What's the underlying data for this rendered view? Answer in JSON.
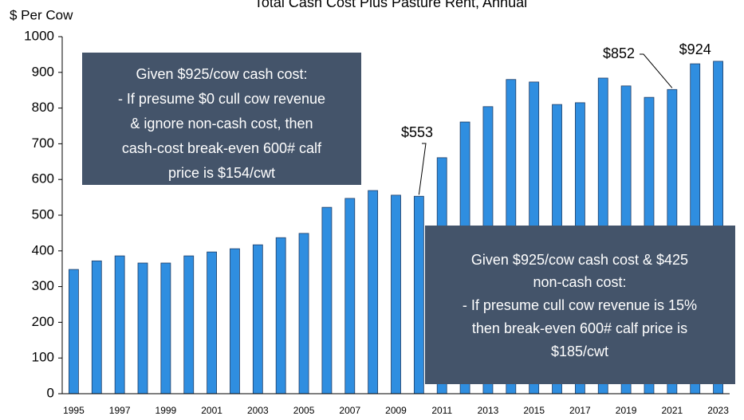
{
  "chart_data": {
    "type": "bar",
    "title": "Total Cash Cost Plus Pasture Rent, Annual",
    "y_label": "$ Per Cow",
    "categories": [
      "1995",
      null,
      "1997",
      null,
      "1999",
      null,
      "2001",
      null,
      "2003",
      null,
      "2005",
      null,
      "2007",
      null,
      "2009",
      null,
      "2011",
      null,
      "2013",
      null,
      "2015",
      null,
      "2017",
      null,
      "2019",
      null,
      "2021",
      null,
      "2023"
    ],
    "values": [
      348,
      372,
      386,
      366,
      366,
      386,
      397,
      406,
      417,
      437,
      449,
      522,
      547,
      569,
      556,
      553,
      661,
      761,
      804,
      880,
      873,
      810,
      815,
      884,
      862,
      830,
      852,
      924,
      931
    ],
    "value_labels": [
      null,
      null,
      null,
      null,
      null,
      null,
      null,
      null,
      null,
      null,
      null,
      null,
      null,
      null,
      null,
      "$553",
      null,
      null,
      null,
      null,
      null,
      null,
      null,
      null,
      null,
      null,
      "$852",
      "$924",
      null
    ],
    "color": "#2f8ee0",
    "ylim": [
      0,
      1000
    ],
    "yticks": [
      0,
      100,
      200,
      300,
      400,
      500,
      600,
      700,
      800,
      900,
      1000
    ],
    "annotations": [
      {
        "lines": [
          "Given $925/cow cash cost:",
          "- If presume $0 cull cow revenue",
          "& ignore non-cash cost, then",
          "cash-cost break-even 600# calf",
          "price is $154/cwt"
        ]
      },
      {
        "lines": [
          "Given $925/cow cash cost & $425",
          "non-cash cost:",
          "- If presume cull cow revenue is 15%",
          "then break-even 600# calf price is",
          "$185/cwt"
        ]
      }
    ]
  }
}
